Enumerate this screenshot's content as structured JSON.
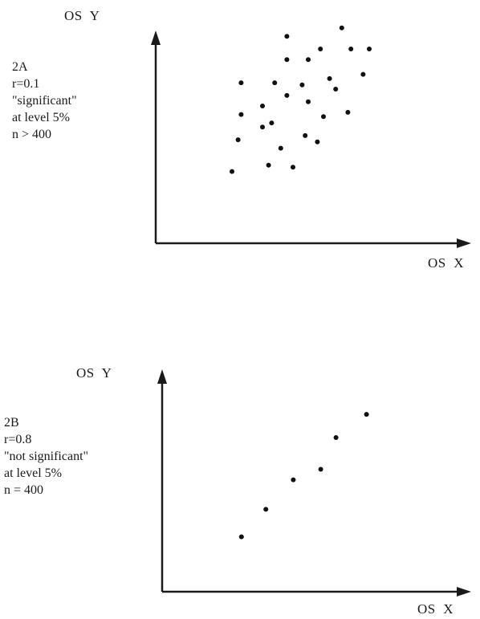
{
  "chart_data": [
    {
      "type": "scatter",
      "panel_id": "2A",
      "title": "",
      "xlabel": "OS  X",
      "ylabel": "OS  Y",
      "grid": false,
      "legend": "none",
      "annotation": {
        "lines": [
          "2A",
          "r=0.1",
          "\"significant\"",
          "at level 5%",
          "n > 400"
        ]
      },
      "xlim": [
        0,
        100
      ],
      "ylim": [
        0,
        100
      ],
      "points": [
        {
          "x": 25,
          "y": 34
        },
        {
          "x": 27,
          "y": 49
        },
        {
          "x": 28,
          "y": 61
        },
        {
          "x": 28,
          "y": 76
        },
        {
          "x": 35,
          "y": 55
        },
        {
          "x": 35,
          "y": 65
        },
        {
          "x": 37,
          "y": 37
        },
        {
          "x": 38,
          "y": 57
        },
        {
          "x": 39,
          "y": 76
        },
        {
          "x": 41,
          "y": 45
        },
        {
          "x": 43,
          "y": 87
        },
        {
          "x": 43,
          "y": 98
        },
        {
          "x": 43,
          "y": 70
        },
        {
          "x": 45,
          "y": 36
        },
        {
          "x": 48,
          "y": 75
        },
        {
          "x": 49,
          "y": 51
        },
        {
          "x": 50,
          "y": 67
        },
        {
          "x": 50,
          "y": 87
        },
        {
          "x": 53,
          "y": 48
        },
        {
          "x": 54,
          "y": 92
        },
        {
          "x": 55,
          "y": 60
        },
        {
          "x": 57,
          "y": 78
        },
        {
          "x": 59,
          "y": 73
        },
        {
          "x": 61,
          "y": 102
        },
        {
          "x": 63,
          "y": 62
        },
        {
          "x": 64,
          "y": 92
        },
        {
          "x": 68,
          "y": 80
        },
        {
          "x": 70,
          "y": 92
        }
      ]
    },
    {
      "type": "scatter",
      "panel_id": "2B",
      "title": "",
      "xlabel": "OS  X",
      "ylabel": "OS  Y",
      "grid": false,
      "legend": "none",
      "annotation": {
        "lines": [
          "2B",
          "r=0.8",
          "\"not significant\"",
          "at level 5%",
          "n = 400"
        ]
      },
      "xlim": [
        0,
        100
      ],
      "ylim": [
        0,
        100
      ],
      "points": [
        {
          "x": 26,
          "y": 26
        },
        {
          "x": 34,
          "y": 39
        },
        {
          "x": 43,
          "y": 53
        },
        {
          "x": 52,
          "y": 58
        },
        {
          "x": 57,
          "y": 73
        },
        {
          "x": 67,
          "y": 84
        }
      ]
    }
  ]
}
